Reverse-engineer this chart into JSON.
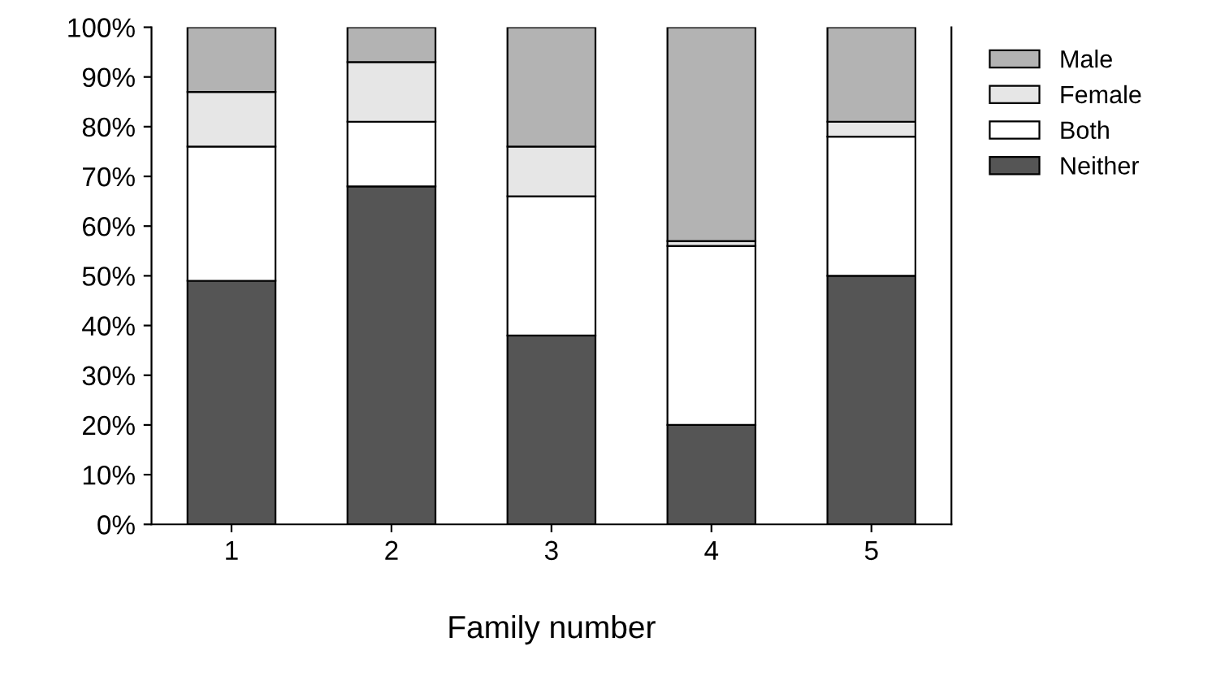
{
  "chart_data": {
    "type": "bar",
    "xlabel": "Family number",
    "categories": [
      "1",
      "2",
      "3",
      "4",
      "5"
    ],
    "stacked": true,
    "series": [
      {
        "name": "Neither",
        "color": "#555555",
        "values": [
          49,
          68,
          38,
          20,
          50
        ]
      },
      {
        "name": "Both",
        "color": "#ffffff",
        "values": [
          27,
          13,
          28,
          36,
          28
        ]
      },
      {
        "name": "Female",
        "color": "#e6e6e6",
        "values": [
          11,
          12,
          10,
          1,
          3
        ]
      },
      {
        "name": "Male",
        "color": "#b3b3b3",
        "values": [
          13,
          7,
          24,
          43,
          19
        ]
      }
    ],
    "ylim": [
      0,
      100
    ],
    "yticks": [
      {
        "value": 0,
        "label": "0%"
      },
      {
        "value": 10,
        "label": "10%"
      },
      {
        "value": 20,
        "label": "20%"
      },
      {
        "value": 30,
        "label": "30%"
      },
      {
        "value": 40,
        "label": "40%"
      },
      {
        "value": 50,
        "label": "50%"
      },
      {
        "value": 60,
        "label": "60%"
      },
      {
        "value": 70,
        "label": "70%"
      },
      {
        "value": 80,
        "label": "80%"
      },
      {
        "value": 90,
        "label": "90%"
      },
      {
        "value": 100,
        "label": "100%"
      }
    ],
    "grid": false,
    "legend": "right"
  }
}
